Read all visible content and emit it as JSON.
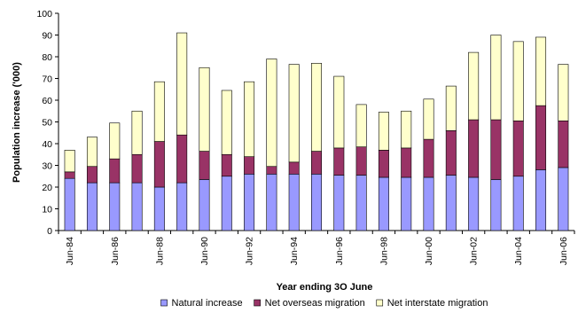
{
  "chart_data": {
    "type": "bar",
    "stacked": true,
    "title": "",
    "xlabel": "Year ending 3O June",
    "ylabel": "Population increase ('000)",
    "ylim": [
      0,
      100
    ],
    "y_ticks": [
      0,
      10,
      20,
      30,
      40,
      50,
      60,
      70,
      80,
      90,
      100
    ],
    "grid": false,
    "legend_position": "bottom",
    "categories": [
      "Jun-84",
      "Jun-85",
      "Jun-86",
      "Jun-87",
      "Jun-88",
      "Jun-89",
      "Jun-90",
      "Jun-91",
      "Jun-92",
      "Jun-93",
      "Jun-94",
      "Jun-95",
      "Jun-96",
      "Jun-97",
      "Jun-98",
      "Jun-99",
      "Jun-00",
      "Jun-01",
      "Jun-02",
      "Jun-03",
      "Jun-04",
      "Jun-05",
      "Jun-06"
    ],
    "x_tick_labels": [
      "Jun-84",
      "",
      "Jun-86",
      "",
      "Jun-88",
      "",
      "Jun-90",
      "",
      "Jun-92",
      "",
      "Jun-94",
      "",
      "Jun-96",
      "",
      "Jun-98",
      "",
      "Jun-00",
      "",
      "Jun-02",
      "",
      "Jun-04",
      "",
      "Jun-06"
    ],
    "series": [
      {
        "name": "Natural increase",
        "color": "#9999ff",
        "values": [
          24,
          22,
          22,
          22,
          20,
          22,
          23.5,
          25,
          26,
          26,
          26,
          26,
          25.5,
          25.5,
          24.5,
          24.5,
          24.5,
          25.5,
          24.5,
          23.5,
          25,
          28,
          29
        ]
      },
      {
        "name": "Net overseas migration",
        "color": "#993366",
        "values": [
          3,
          7.5,
          11,
          13,
          21,
          22,
          13,
          10,
          8,
          3.5,
          5.5,
          10.5,
          12.5,
          13,
          12.5,
          13.5,
          17.5,
          20.5,
          26.5,
          27.5,
          25.5,
          29.5,
          21.5
        ]
      },
      {
        "name": "Net interstate migration",
        "color": "#ffffcc",
        "values": [
          10,
          13.5,
          16.5,
          20,
          27.5,
          47,
          38.5,
          29.5,
          34.5,
          49.5,
          45,
          40.5,
          33,
          19.5,
          17.5,
          17,
          18.5,
          20.5,
          31,
          39,
          36.5,
          31.5,
          26
        ]
      }
    ]
  }
}
